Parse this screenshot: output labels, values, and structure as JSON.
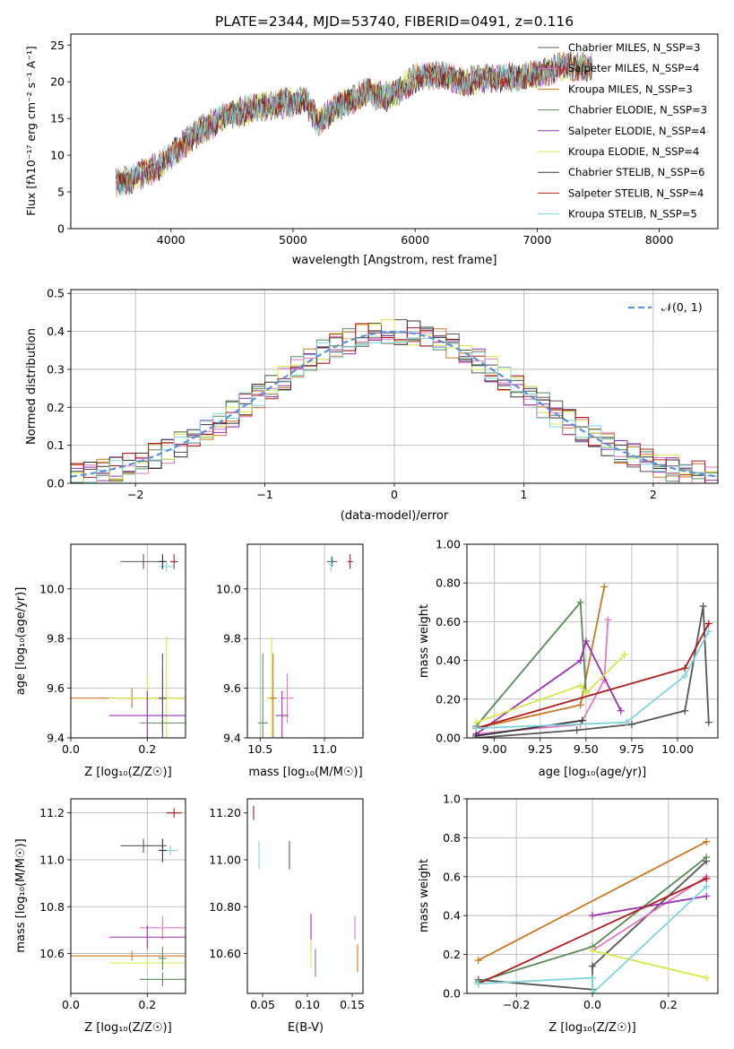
{
  "figure": {
    "title": "PLATE=2344, MJD=53740, FIBERID=0491, z=0.116"
  },
  "chart_data": [
    {
      "id": "spectrum",
      "type": "line",
      "xlabel": "wavelength [Angstrom, rest frame]",
      "ylabel": "Flux [fλ10⁻¹⁷ erg cm⁻² s⁻¹ A⁻¹]",
      "xlim": [
        3180,
        8480
      ],
      "ylim": [
        0,
        26.5
      ],
      "xticks": [
        4000,
        5000,
        6000,
        7000,
        8000
      ],
      "yticks": [
        0,
        5,
        10,
        15,
        20,
        25
      ],
      "grid": false,
      "legend_position": "top-right",
      "continuum_x": [
        3550,
        3700,
        3900,
        4100,
        4300,
        4500,
        4700,
        4900,
        5100,
        5200,
        5400,
        5600,
        5800,
        6000,
        6200,
        6400,
        6600,
        6800,
        7000,
        7200,
        7400
      ],
      "continuum_y": [
        6.0,
        7.0,
        8.5,
        11.5,
        14.0,
        15.5,
        16.5,
        17.0,
        17.5,
        14.5,
        17.0,
        18.5,
        18.0,
        20.5,
        21.0,
        20.0,
        20.5,
        20.5,
        21.0,
        22.0,
        22.0
      ],
      "series": [
        {
          "name": "Chabrier MILES, N_SSP=3",
          "color": "#555555"
        },
        {
          "name": "Salpeter MILES, N_SSP=4",
          "color": "#e377c2"
        },
        {
          "name": "Kroupa MILES, N_SSP=3",
          "color": "#cc7722"
        },
        {
          "name": "Chabrier ELODIE, N_SSP=3",
          "color": "#5a8a5a"
        },
        {
          "name": "Salpeter ELODIE, N_SSP=4",
          "color": "#9b30b0"
        },
        {
          "name": "Kroupa ELODIE, N_SSP=4",
          "color": "#d4e84a"
        },
        {
          "name": "Chabrier STELIB, N_SSP=6",
          "color": "#333333"
        },
        {
          "name": "Salpeter STELIB, N_SSP=4",
          "color": "#b01c1c"
        },
        {
          "name": "Kroupa STELIB, N_SSP=5",
          "color": "#7fd4dc"
        }
      ]
    },
    {
      "id": "residuals",
      "type": "line",
      "xlabel": "(data-model)/error",
      "ylabel": "Normed distribution",
      "xlim": [
        -2.5,
        2.5
      ],
      "ylim": [
        0,
        0.51
      ],
      "xticks": [
        -2,
        -1,
        0,
        1,
        2
      ],
      "yticks": [
        0.0,
        0.1,
        0.2,
        0.3,
        0.4,
        0.5
      ],
      "grid": true,
      "legend_position": "top-right",
      "legend": [
        {
          "name": "𝒩(0, 1)",
          "color": "#5b8fd8"
        }
      ],
      "bin_width": 0.1,
      "series_colors": [
        "#555555",
        "#e377c2",
        "#cc7722",
        "#5a8a5a",
        "#9b30b0",
        "#d4e84a",
        "#333333",
        "#b01c1c",
        "#7fd4dc"
      ]
    },
    {
      "id": "age-vs-Z",
      "type": "scatter",
      "xlabel": "Z [log₁₀(Z/Z☉)]",
      "ylabel": "age  [log₁₀(age/yr)]",
      "xlim": [
        0,
        0.3
      ],
      "ylim": [
        9.4,
        10.18
      ],
      "xticks": [
        0.0,
        0.2
      ],
      "yticks": [
        9.4,
        9.6,
        9.8,
        10.0
      ],
      "grid": true,
      "points": [
        {
          "x": 0.19,
          "y": 10.11,
          "xerr": 0.06,
          "yerr": 0.03,
          "color": "#555555"
        },
        {
          "x": 0.27,
          "y": 10.11,
          "xerr": 0.01,
          "yerr": 0.03,
          "color": "#b01c1c"
        },
        {
          "x": 0.25,
          "y": 10.09,
          "xerr": 0.02,
          "yerr": 0.02,
          "color": "#7fd4dc"
        },
        {
          "x": 0.24,
          "y": 10.11,
          "xerr": 0.01,
          "yerr": 0.03,
          "color": "#333333"
        },
        {
          "x": 0.16,
          "y": 9.56,
          "xerr": 0.16,
          "yerr": 0.04,
          "color": "#cc7722"
        },
        {
          "x": 0.2,
          "y": 9.56,
          "xerr": 0.1,
          "yerr": 0.1,
          "color": "#d4e84a"
        },
        {
          "x": 0.25,
          "y": 9.56,
          "xerr": 0.01,
          "yerr": 0.25,
          "color": "#d4e84a"
        },
        {
          "x": 0.24,
          "y": 9.56,
          "xerr": 0.01,
          "yerr": 0.12,
          "color": "#5a8a5a"
        },
        {
          "x": 0.2,
          "y": 9.49,
          "xerr": 0.1,
          "yerr": 0.1,
          "color": "#9b30b0"
        },
        {
          "x": 0.24,
          "y": 9.46,
          "xerr": 0.06,
          "yerr": 0.03,
          "color": "#5a8a5a"
        },
        {
          "x": 0.24,
          "y": 9.56,
          "xerr": 0.01,
          "yerr": 0.18,
          "color": "#555555"
        }
      ]
    },
    {
      "id": "age-vs-mass",
      "type": "scatter",
      "xlabel": "mass [log₁₀(M/M☉)]",
      "ylabel": "",
      "xlim": [
        10.4,
        11.3
      ],
      "ylim": [
        9.4,
        10.18
      ],
      "xticks": [
        10.5,
        11.0
      ],
      "yticks": [
        9.4,
        9.6,
        9.8,
        10.0
      ],
      "grid": true,
      "points": [
        {
          "x": 11.06,
          "y": 10.11,
          "xerr": 0.04,
          "yerr": 0.02,
          "color": "#555555"
        },
        {
          "x": 11.05,
          "y": 10.1,
          "xerr": 0.02,
          "yerr": 0.03,
          "color": "#7fd4dc"
        },
        {
          "x": 11.2,
          "y": 10.11,
          "xerr": 0.02,
          "yerr": 0.03,
          "color": "#b01c1c"
        },
        {
          "x": 10.59,
          "y": 9.56,
          "xerr": 0.04,
          "yerr": 0.25,
          "color": "#d4e84a"
        },
        {
          "x": 10.6,
          "y": 9.56,
          "xerr": 0.03,
          "yerr": 0.18,
          "color": "#cc7722"
        },
        {
          "x": 10.71,
          "y": 9.56,
          "xerr": 0.05,
          "yerr": 0.1,
          "color": "#e377c2"
        },
        {
          "x": 10.67,
          "y": 9.49,
          "xerr": 0.05,
          "yerr": 0.1,
          "color": "#9b30b0"
        },
        {
          "x": 10.52,
          "y": 9.46,
          "xerr": 0.04,
          "yerr": 0.28,
          "color": "#5a8a5a"
        }
      ]
    },
    {
      "id": "weight-vs-age",
      "type": "line",
      "xlabel": "age  [log₁₀(age/yr)]",
      "ylabel": "mass weight",
      "xlim": [
        8.85,
        10.22
      ],
      "ylim": [
        0.0,
        1.0
      ],
      "xticks": [
        9.0,
        9.25,
        9.5,
        9.75,
        10.0
      ],
      "yticks": [
        0.0,
        0.2,
        0.4,
        0.6,
        0.8,
        1.0
      ],
      "grid": true,
      "series": [
        {
          "color": "#555555",
          "x": [
            8.9,
            9.45,
            9.75,
            10.04,
            10.14,
            10.17
          ],
          "y": [
            0.0,
            0.04,
            0.07,
            0.14,
            0.68,
            0.08
          ]
        },
        {
          "color": "#e377c2",
          "x": [
            8.9,
            9.47,
            9.6,
            9.62
          ],
          "y": [
            0.02,
            0.07,
            0.3,
            0.61
          ]
        },
        {
          "color": "#cc7722",
          "x": [
            8.9,
            9.47,
            9.6
          ],
          "y": [
            0.05,
            0.17,
            0.78
          ]
        },
        {
          "color": "#5a8a5a",
          "x": [
            8.9,
            9.47,
            9.5
          ],
          "y": [
            0.06,
            0.7,
            0.24
          ]
        },
        {
          "color": "#9b30b0",
          "x": [
            8.9,
            9.47,
            9.5,
            9.69
          ],
          "y": [
            0.02,
            0.4,
            0.5,
            0.14
          ]
        },
        {
          "color": "#d4e84a",
          "x": [
            8.9,
            9.47,
            9.5,
            9.71
          ],
          "y": [
            0.08,
            0.27,
            0.23,
            0.43
          ]
        },
        {
          "color": "#333333",
          "x": [
            8.9,
            9.48
          ],
          "y": [
            0.01,
            0.09
          ]
        },
        {
          "color": "#b01c1c",
          "x": [
            8.9,
            10.04,
            10.17
          ],
          "y": [
            0.05,
            0.36,
            0.59
          ]
        },
        {
          "color": "#7fd4dc",
          "x": [
            8.9,
            9.72,
            10.04,
            10.17
          ],
          "y": [
            0.05,
            0.08,
            0.32,
            0.55
          ]
        }
      ]
    },
    {
      "id": "mass-vs-Z",
      "type": "scatter",
      "xlabel": "Z [log₁₀(Z/Z☉)]",
      "ylabel": "mass [log₁₀(M/M☉)]",
      "xlim": [
        0,
        0.3
      ],
      "ylim": [
        10.43,
        11.26
      ],
      "xticks": [
        0.0,
        0.2
      ],
      "yticks": [
        10.6,
        10.8,
        11.0,
        11.2
      ],
      "grid": true,
      "points": [
        {
          "x": 0.27,
          "y": 11.2,
          "xerr": 0.02,
          "yerr": 0.02,
          "color": "#b01c1c"
        },
        {
          "x": 0.19,
          "y": 11.06,
          "xerr": 0.06,
          "yerr": 0.03,
          "color": "#555555"
        },
        {
          "x": 0.26,
          "y": 11.04,
          "xerr": 0.02,
          "yerr": 0.02,
          "color": "#7fd4dc"
        },
        {
          "x": 0.24,
          "y": 11.04,
          "xerr": 0.01,
          "yerr": 0.05,
          "color": "#333333"
        },
        {
          "x": 0.24,
          "y": 10.71,
          "xerr": 0.06,
          "yerr": 0.05,
          "color": "#e377c2"
        },
        {
          "x": 0.2,
          "y": 10.67,
          "xerr": 0.1,
          "yerr": 0.05,
          "color": "#9b30b0"
        },
        {
          "x": 0.16,
          "y": 10.59,
          "xerr": 0.16,
          "yerr": 0.02,
          "color": "#cc7722"
        },
        {
          "x": 0.2,
          "y": 10.56,
          "xerr": 0.1,
          "yerr": 0.02,
          "color": "#d4e84a"
        },
        {
          "x": 0.24,
          "y": 10.58,
          "xerr": 0.01,
          "yerr": 0.05,
          "color": "#5a8a5a"
        },
        {
          "x": 0.24,
          "y": 10.49,
          "xerr": 0.06,
          "yerr": 0.03,
          "color": "#5a8a5a"
        }
      ]
    },
    {
      "id": "mass-vs-ebv",
      "type": "scatter",
      "xlabel": "E(B-V)",
      "ylabel": "",
      "xlim": [
        0.033,
        0.162
      ],
      "ylim": [
        10.43,
        11.26
      ],
      "xticks": [
        0.05,
        0.1,
        0.15
      ],
      "yticks": [
        10.6,
        10.8,
        11.0,
        11.2
      ],
      "grid": false,
      "points": [
        {
          "x": 0.04,
          "y": 11.2,
          "xerr": 0.0,
          "yerr": 0.03,
          "color": "#b01c1c"
        },
        {
          "x": 0.08,
          "y": 11.02,
          "xerr": 0.0,
          "yerr": 0.06,
          "color": "#555555"
        },
        {
          "x": 0.046,
          "y": 11.02,
          "xerr": 0.0,
          "yerr": 0.06,
          "color": "#7fd4dc"
        },
        {
          "x": 0.104,
          "y": 10.71,
          "xerr": 0.0,
          "yerr": 0.06,
          "color": "#9b30b0"
        },
        {
          "x": 0.104,
          "y": 10.6,
          "xerr": 0.0,
          "yerr": 0.06,
          "color": "#d4e84a"
        },
        {
          "x": 0.109,
          "y": 10.56,
          "xerr": 0.0,
          "yerr": 0.06,
          "color": "#5a8a5a"
        },
        {
          "x": 0.153,
          "y": 10.71,
          "xerr": 0.0,
          "yerr": 0.05,
          "color": "#e377c2"
        },
        {
          "x": 0.156,
          "y": 10.58,
          "xerr": 0.0,
          "yerr": 0.06,
          "color": "#cc7722"
        }
      ]
    },
    {
      "id": "weight-vs-Z",
      "type": "line",
      "xlabel": "Z [log₁₀(Z/Z☉)]",
      "ylabel": "mass weight",
      "xlim": [
        -0.33,
        0.33
      ],
      "ylim": [
        0.0,
        1.0
      ],
      "xticks": [
        -0.2,
        0.0,
        0.2
      ],
      "yticks": [
        0.0,
        0.2,
        0.4,
        0.6,
        0.8,
        1.0
      ],
      "grid": true,
      "series": [
        {
          "color": "#555555",
          "x": [
            -0.3,
            0.0,
            0.0,
            0.3
          ],
          "y": [
            0.07,
            0.02,
            0.14,
            0.68
          ]
        },
        {
          "color": "#e377c2",
          "x": [
            0.0,
            0.3
          ],
          "y": [
            0.22,
            0.6
          ]
        },
        {
          "color": "#cc7722",
          "x": [
            -0.3,
            0.3
          ],
          "y": [
            0.17,
            0.78
          ]
        },
        {
          "color": "#5a8a5a",
          "x": [
            -0.3,
            0.0,
            0.3
          ],
          "y": [
            0.06,
            0.24,
            0.7
          ]
        },
        {
          "color": "#9b30b0",
          "x": [
            0.0,
            0.3
          ],
          "y": [
            0.4,
            0.5
          ]
        },
        {
          "color": "#d4e84a",
          "x": [
            0.0,
            0.3
          ],
          "y": [
            0.22,
            0.08
          ]
        },
        {
          "color": "#b01c1c",
          "x": [
            -0.3,
            0.3
          ],
          "y": [
            0.05,
            0.59
          ]
        },
        {
          "color": "#7fd4dc",
          "x": [
            -0.3,
            0.0,
            0.0,
            0.3
          ],
          "y": [
            0.05,
            0.08,
            0.0,
            0.55
          ]
        }
      ]
    }
  ]
}
